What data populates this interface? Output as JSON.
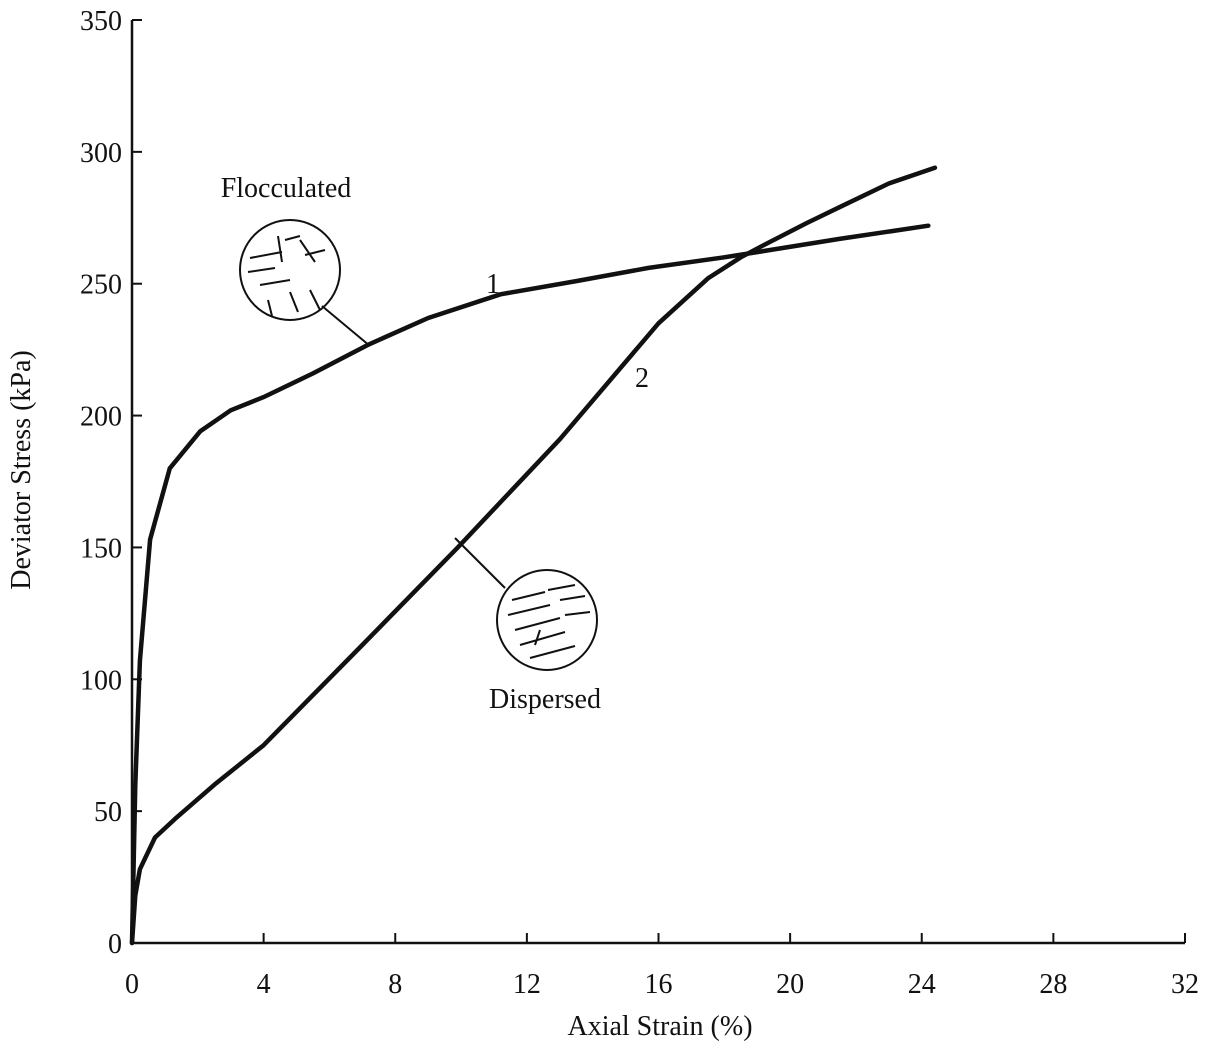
{
  "chart_data": {
    "type": "line",
    "xlabel": "Axial Strain (%)",
    "ylabel": "Deviator Stress (kPa)",
    "xlim": [
      0,
      32
    ],
    "xticks": [
      0,
      4,
      8,
      12,
      16,
      20,
      24,
      28,
      32
    ],
    "ylim": [
      0,
      350
    ],
    "yticks": [
      0,
      50,
      100,
      150,
      200,
      250,
      300,
      350
    ],
    "grid": false,
    "series": [
      {
        "name": "1",
        "color": "#111111",
        "x": [
          0,
          0.1,
          0.24,
          0.55,
          1.15,
          2.07,
          3.0,
          3.6,
          4.0,
          5.5,
          7.2,
          9.0,
          11.2,
          13.5,
          15.7,
          18.0,
          19.0,
          21.5,
          24.2
        ],
        "values": [
          0,
          60,
          107,
          153,
          180,
          194,
          202,
          205,
          207,
          216,
          227,
          237,
          246,
          251,
          256,
          260,
          262,
          267,
          272
        ]
      },
      {
        "name": "2",
        "color": "#111111",
        "x": [
          0,
          0.1,
          0.24,
          0.7,
          1.3,
          2.5,
          4.0,
          7.0,
          9.9,
          13.0,
          16.0,
          17.5,
          18.5,
          19.1,
          20.5,
          21.5,
          23.0,
          24.4
        ],
        "values": [
          0,
          18,
          28,
          40,
          47,
          60,
          75,
          113,
          150,
          191,
          235,
          252,
          260,
          264,
          273,
          279,
          288,
          294
        ]
      }
    ],
    "annotations": [
      {
        "text": "Flocculated"
      },
      {
        "text": "Dispersed"
      }
    ]
  }
}
